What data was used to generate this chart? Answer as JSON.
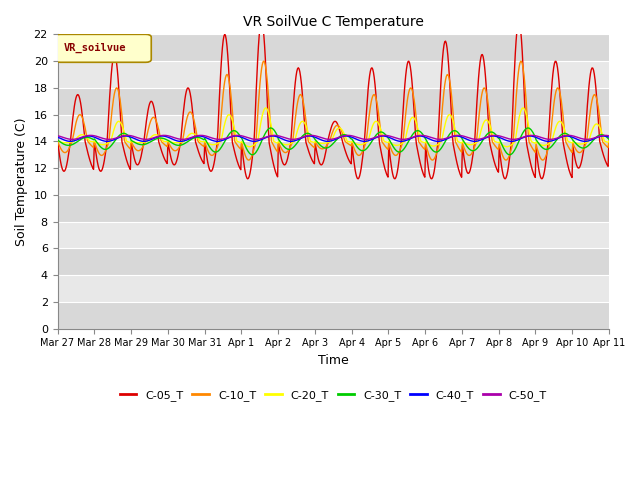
{
  "title": "VR SoilVue C Temperature",
  "xlabel": "Time",
  "ylabel": "Soil Temperature (C)",
  "ylim": [
    0,
    22
  ],
  "yticks": [
    0,
    2,
    4,
    6,
    8,
    10,
    12,
    14,
    16,
    18,
    20,
    22
  ],
  "x_labels": [
    "Mar 27",
    "Mar 28",
    "Mar 29",
    "Mar 30",
    "Mar 31",
    "Apr 1",
    "Apr 2",
    "Apr 3",
    "Apr 4",
    "Apr 5",
    "Apr 6",
    "Apr 7",
    "Apr 8",
    "Apr 9",
    "Apr 10",
    "Apr 11"
  ],
  "legend_label": "VR_soilvue",
  "series_colors": {
    "C-05_T": "#dd0000",
    "C-10_T": "#ff8800",
    "C-20_T": "#ffff00",
    "C-30_T": "#00cc00",
    "C-40_T": "#0000ff",
    "C-50_T": "#aa00aa"
  },
  "band_colors": [
    "#d8d8d8",
    "#e8e8e8"
  ],
  "plot_bg_color": "#d8d8d8",
  "fig_bg_color": "#ffffff",
  "grid_color": "#ffffff",
  "vr_box_face": "#ffffcc",
  "vr_box_edge": "#aa8800",
  "vr_text_color": "#880000",
  "title_fontsize": 10,
  "axis_fontsize": 9,
  "tick_fontsize": 8
}
